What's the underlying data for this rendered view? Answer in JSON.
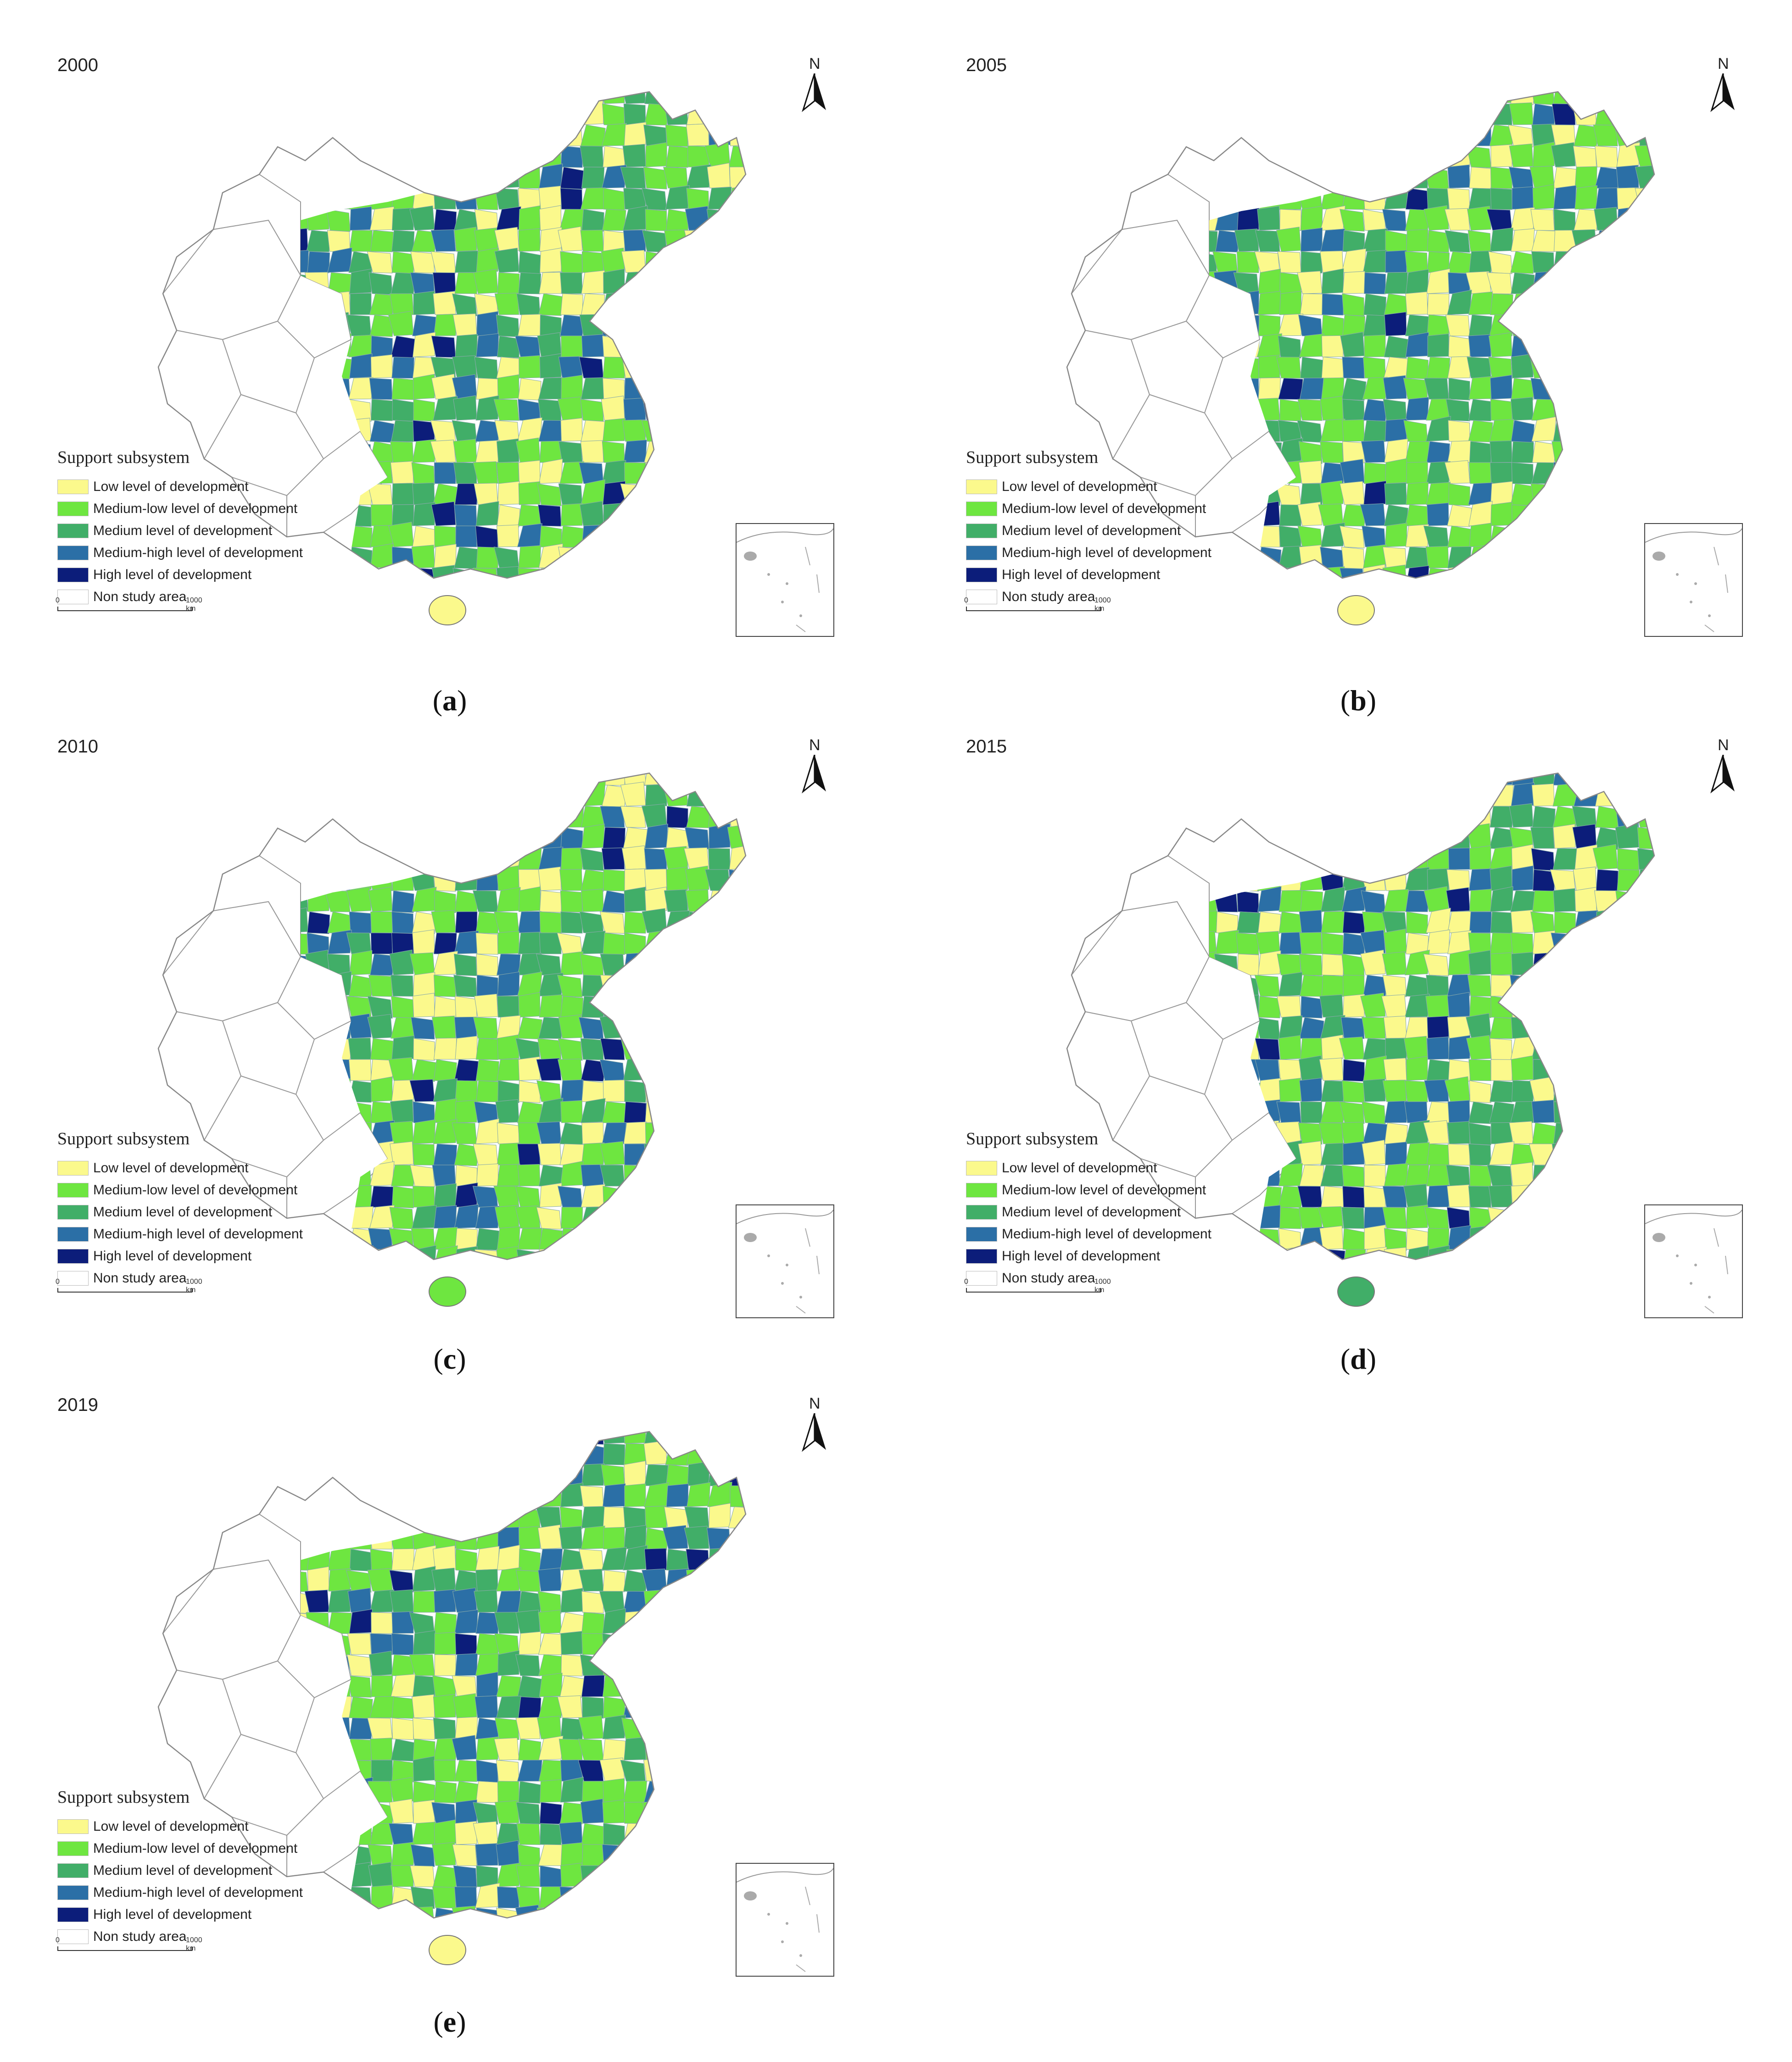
{
  "legend": {
    "title": "Support subsystem",
    "items": [
      {
        "label": "Low level of development",
        "color": "#fbf98c"
      },
      {
        "label": "Medium-low level of development",
        "color": "#6ee640"
      },
      {
        "label": "Medium level of development",
        "color": "#41ae68"
      },
      {
        "label": "Medium-high level of development",
        "color": "#2b6fa6"
      },
      {
        "label": "High level of development",
        "color": "#0c1d7a"
      },
      {
        "label": "Non study area",
        "color": "#ffffff"
      }
    ]
  },
  "north_label": "N",
  "scale": {
    "zero": "0",
    "max": "1000 km"
  },
  "panels": [
    {
      "year": "2000",
      "caption_open": "(",
      "caption_letter": "a",
      "caption_close": ")"
    },
    {
      "year": "2005",
      "caption_open": "(",
      "caption_letter": "b",
      "caption_close": ")"
    },
    {
      "year": "2010",
      "caption_open": "(",
      "caption_letter": "c",
      "caption_close": ")"
    },
    {
      "year": "2015",
      "caption_open": "(",
      "caption_letter": "d",
      "caption_close": ")"
    },
    {
      "year": "2019",
      "caption_open": "(",
      "caption_letter": "e",
      "caption_close": ")"
    }
  ]
}
